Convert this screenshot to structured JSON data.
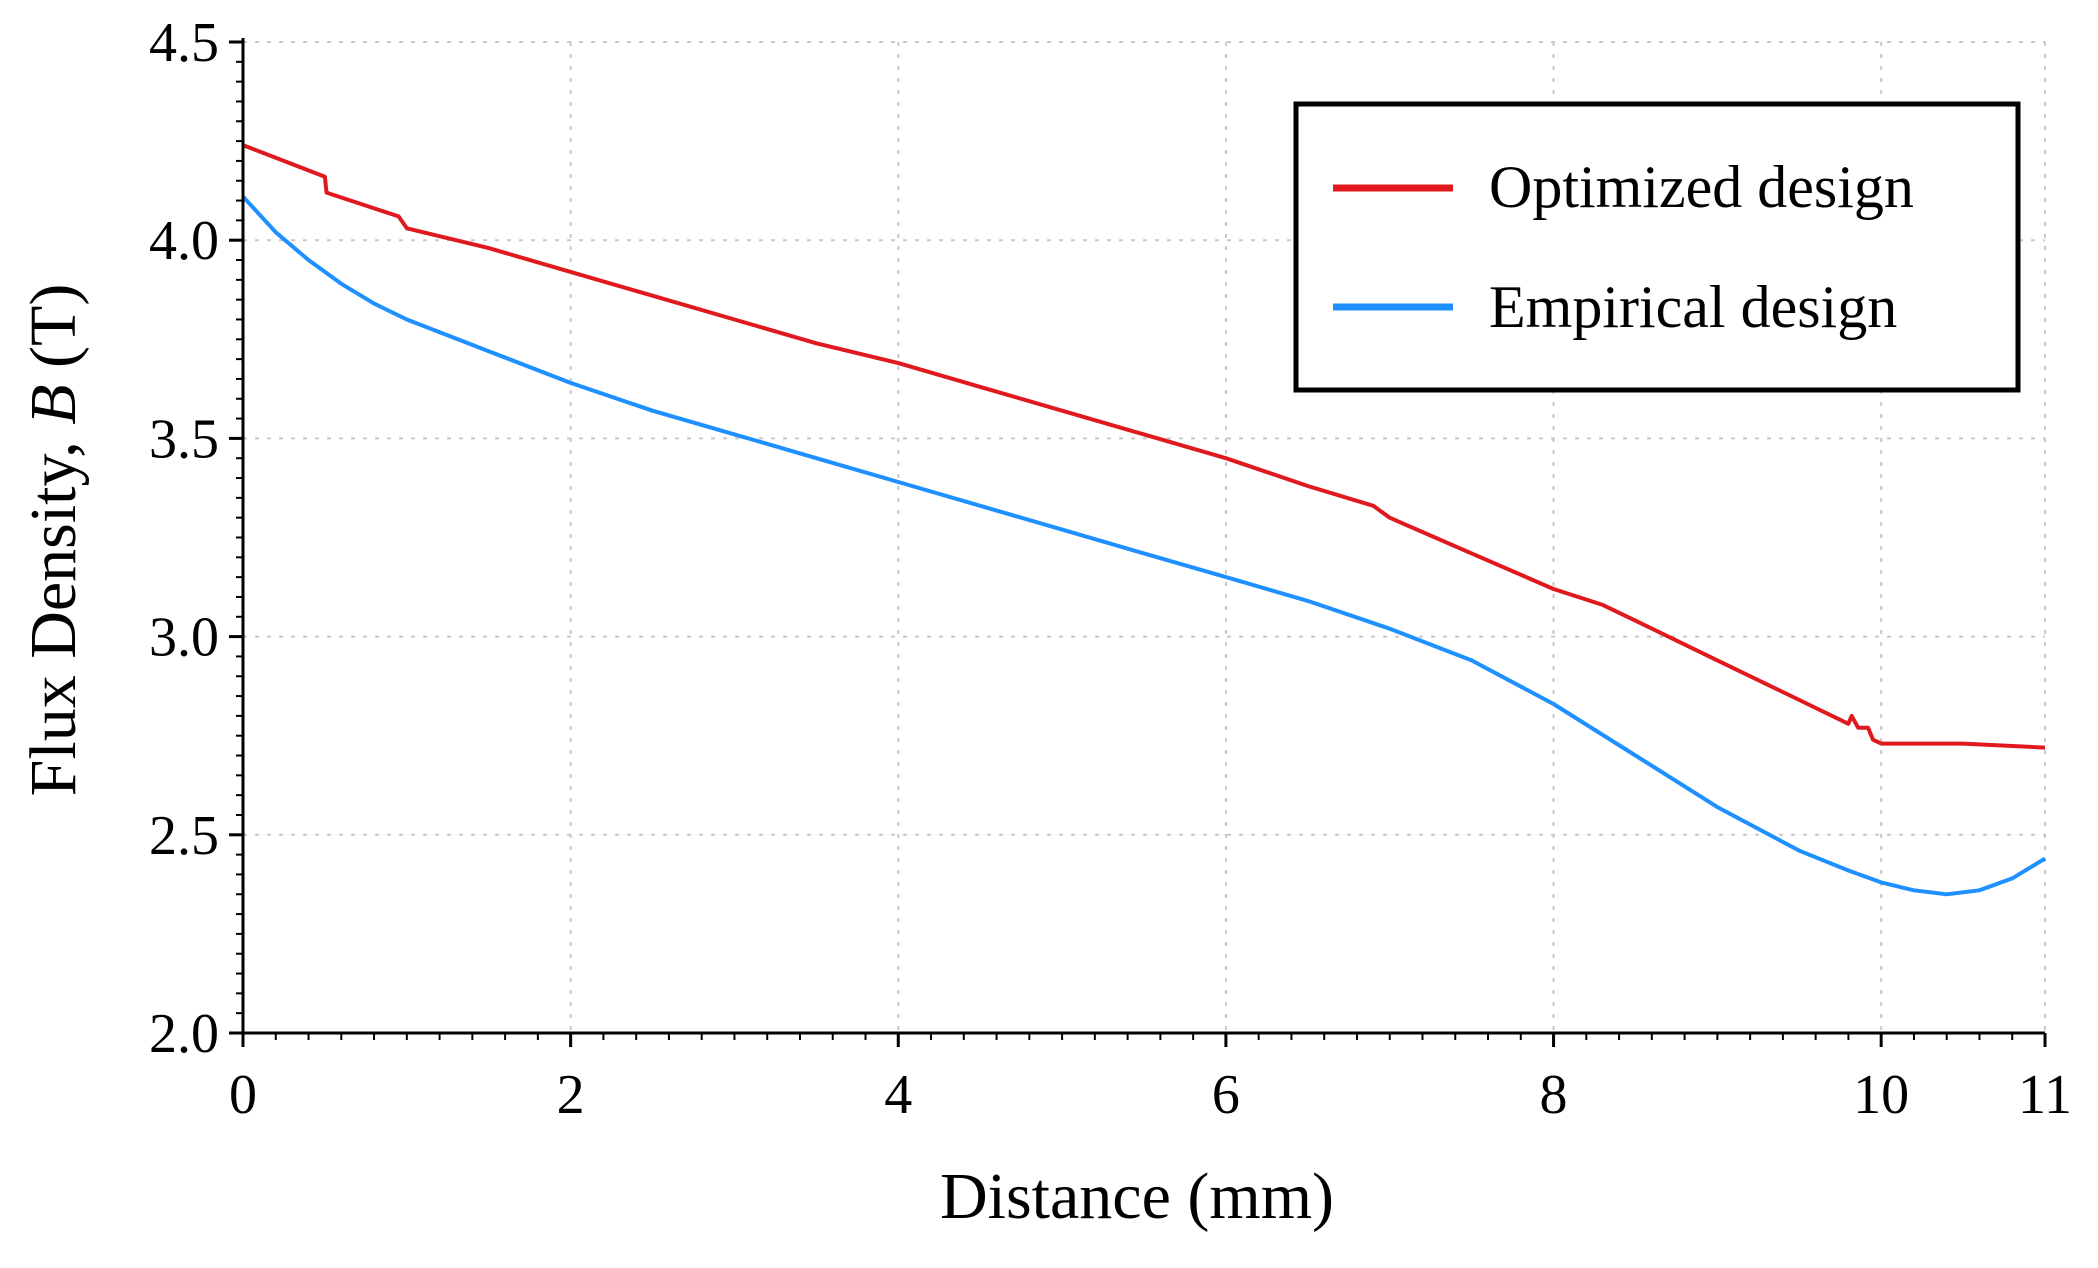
{
  "chart_data": {
    "type": "line",
    "title": "",
    "xlabel": "Distance (mm)",
    "ylabel_prefix": "Flux Density, ",
    "ylabel_symbol": "B",
    "ylabel_suffix": " (T)",
    "xlim": [
      0,
      11
    ],
    "ylim": [
      2.0,
      4.5
    ],
    "x_ticks": [
      {
        "value": 0,
        "label": "0"
      },
      {
        "value": 2,
        "label": "2"
      },
      {
        "value": 4,
        "label": "4"
      },
      {
        "value": 6,
        "label": "6"
      },
      {
        "value": 8,
        "label": "8"
      },
      {
        "value": 10,
        "label": "10"
      },
      {
        "value": 11,
        "label": "11"
      }
    ],
    "y_ticks": [
      {
        "value": 2.0,
        "label": "2.0"
      },
      {
        "value": 2.5,
        "label": "2.5"
      },
      {
        "value": 3.0,
        "label": "3.0"
      },
      {
        "value": 3.5,
        "label": "3.5"
      },
      {
        "value": 4.0,
        "label": "4.0"
      },
      {
        "value": 4.5,
        "label": "4.5"
      }
    ],
    "grid": true,
    "legend_position": "top-right",
    "series": [
      {
        "name": "Optimized design",
        "color": "#e0191e",
        "points": [
          [
            0,
            4.24
          ],
          [
            0.5,
            4.16
          ],
          [
            0.51,
            4.12
          ],
          [
            0.95,
            4.06
          ],
          [
            1.0,
            4.03
          ],
          [
            1.5,
            3.98
          ],
          [
            2.0,
            3.92
          ],
          [
            2.5,
            3.86
          ],
          [
            3.0,
            3.8
          ],
          [
            3.5,
            3.74
          ],
          [
            4.0,
            3.69
          ],
          [
            4.5,
            3.63
          ],
          [
            5.0,
            3.57
          ],
          [
            5.5,
            3.51
          ],
          [
            6.0,
            3.45
          ],
          [
            6.5,
            3.38
          ],
          [
            6.9,
            3.33
          ],
          [
            7.0,
            3.3
          ],
          [
            7.5,
            3.21
          ],
          [
            8.0,
            3.12
          ],
          [
            8.3,
            3.08
          ],
          [
            8.5,
            3.04
          ],
          [
            9.0,
            2.94
          ],
          [
            9.5,
            2.84
          ],
          [
            9.8,
            2.78
          ],
          [
            9.82,
            2.8
          ],
          [
            9.86,
            2.77
          ],
          [
            9.92,
            2.77
          ],
          [
            9.95,
            2.74
          ],
          [
            10.0,
            2.73
          ],
          [
            10.5,
            2.73
          ],
          [
            11.0,
            2.72
          ]
        ]
      },
      {
        "name": "Empirical design",
        "color": "#1e90ff",
        "points": [
          [
            0,
            4.11
          ],
          [
            0.2,
            4.02
          ],
          [
            0.4,
            3.95
          ],
          [
            0.6,
            3.89
          ],
          [
            0.8,
            3.84
          ],
          [
            1.0,
            3.8
          ],
          [
            1.5,
            3.72
          ],
          [
            2.0,
            3.64
          ],
          [
            2.5,
            3.57
          ],
          [
            3.0,
            3.51
          ],
          [
            3.5,
            3.45
          ],
          [
            4.0,
            3.39
          ],
          [
            4.5,
            3.33
          ],
          [
            5.0,
            3.27
          ],
          [
            5.5,
            3.21
          ],
          [
            6.0,
            3.15
          ],
          [
            6.5,
            3.09
          ],
          [
            7.0,
            3.02
          ],
          [
            7.5,
            2.94
          ],
          [
            8.0,
            2.83
          ],
          [
            8.5,
            2.7
          ],
          [
            9.0,
            2.57
          ],
          [
            9.5,
            2.46
          ],
          [
            9.8,
            2.41
          ],
          [
            10.0,
            2.38
          ],
          [
            10.2,
            2.36
          ],
          [
            10.4,
            2.35
          ],
          [
            10.6,
            2.36
          ],
          [
            10.8,
            2.39
          ],
          [
            11.0,
            2.44
          ]
        ]
      }
    ]
  }
}
